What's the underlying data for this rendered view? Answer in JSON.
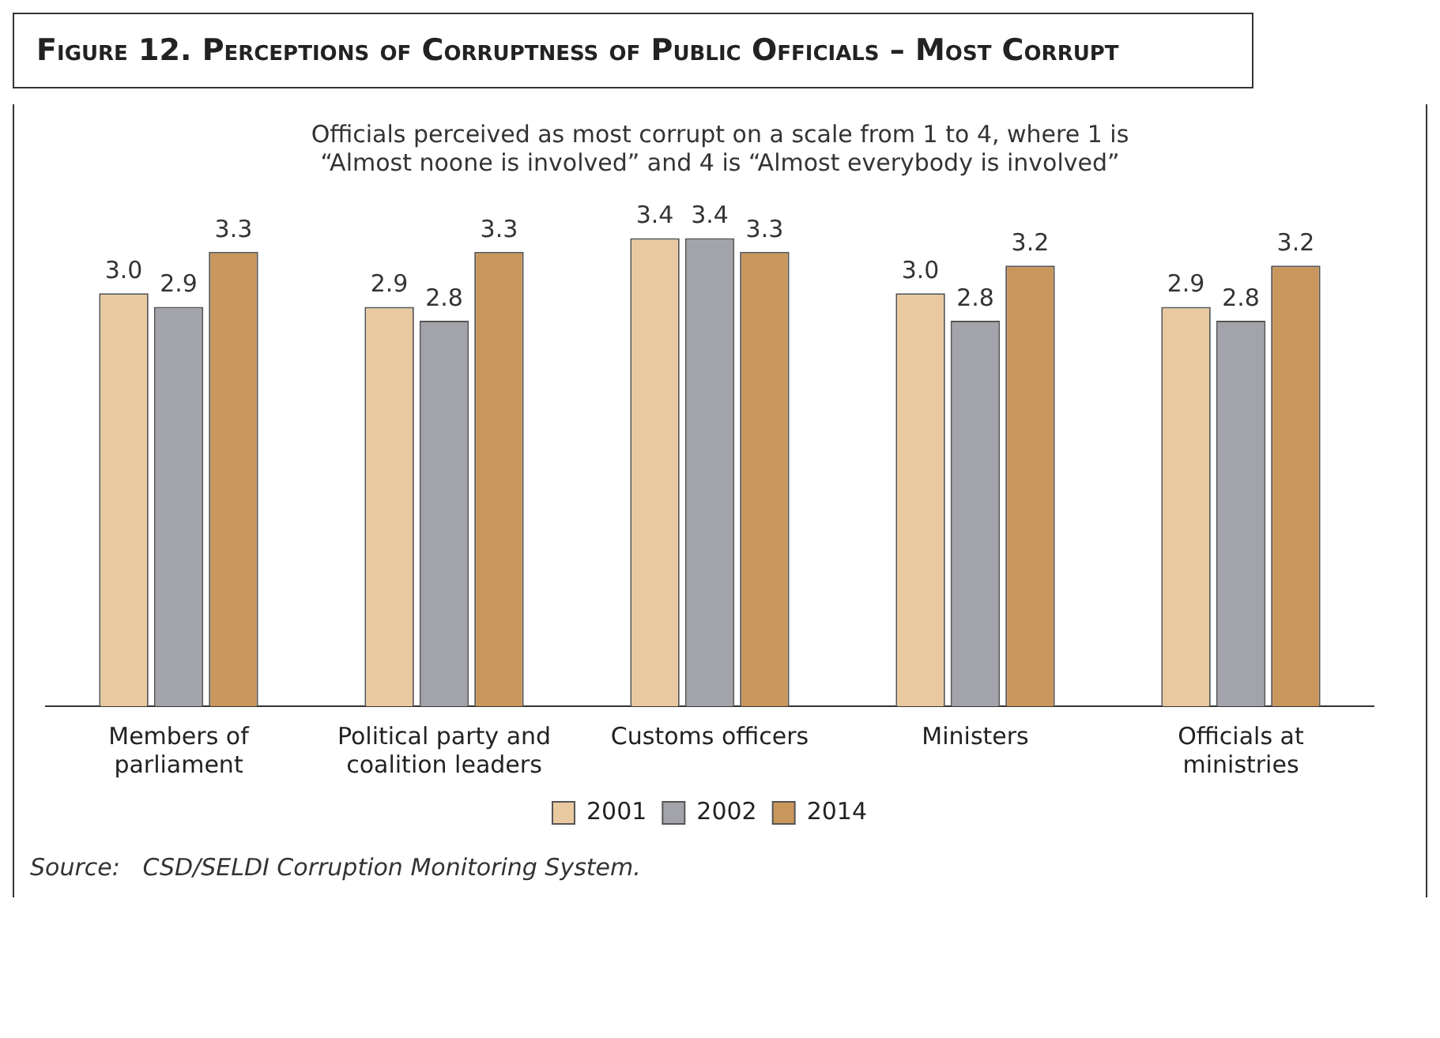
{
  "chart_data": {
    "type": "bar",
    "title": "Figure 12. Perceptions of Corruptness of Public Officials – Most Corrupt",
    "subtitle": "Officials perceived as most corrupt on a scale from 1 to 4, where 1 is “Almost noone is involved” and 4 is “Almost everybody is involved”",
    "categories": [
      "Members of parliament",
      "Political party and coalition leaders",
      "Customs officers",
      "Ministers",
      "Officials at ministries"
    ],
    "series": [
      {
        "name": "2001",
        "color": "#e9c9a0",
        "values": [
          3.0,
          2.9,
          3.4,
          3.0,
          2.9
        ],
        "value_labels": [
          "3.0",
          "2.9",
          "3.4",
          "3.0",
          "2.9"
        ]
      },
      {
        "name": "2002",
        "color": "#a3a3ab",
        "values": [
          2.9,
          2.8,
          3.4,
          2.8,
          2.8
        ],
        "value_labels": [
          "2.9",
          "2.8",
          "3.4",
          "2.8",
          "2.8"
        ]
      },
      {
        "name": "2014",
        "color": "#c9965c",
        "values": [
          3.3,
          3.3,
          3.3,
          3.2,
          3.2
        ],
        "value_labels": [
          "3.3",
          "3.3",
          "3.3",
          "3.2",
          "3.2"
        ]
      }
    ],
    "legend": "bottom",
    "grid": false,
    "annotations": [
      "Source:   CSD/SELDI Corruption Monitoring System."
    ]
  }
}
